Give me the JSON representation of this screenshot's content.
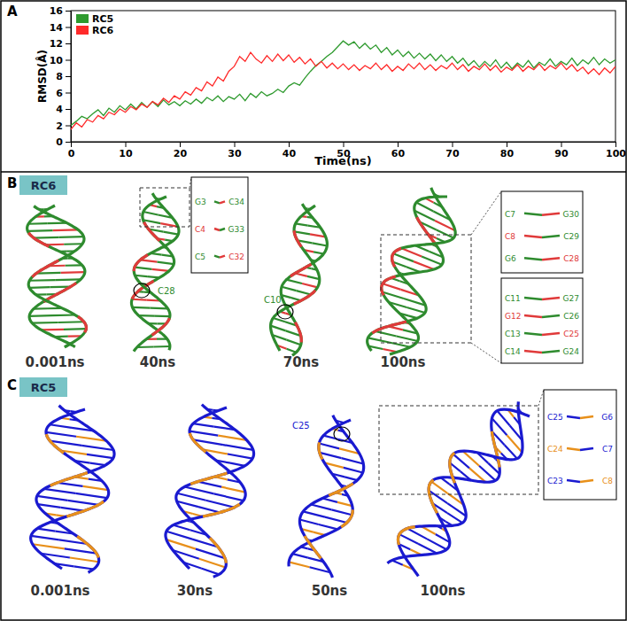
{
  "chart_data": {
    "type": "line",
    "x_label": "Time(ns)",
    "y_label": "RMSD(Å)",
    "x": [
      0,
      1,
      2,
      3,
      4,
      5,
      6,
      7,
      8,
      9,
      10,
      11,
      12,
      13,
      14,
      15,
      16,
      17,
      18,
      19,
      20,
      21,
      22,
      23,
      24,
      25,
      26,
      27,
      28,
      29,
      30,
      31,
      32,
      33,
      34,
      35,
      36,
      37,
      38,
      39,
      40,
      41,
      42,
      43,
      44,
      45,
      46,
      47,
      48,
      49,
      50,
      51,
      52,
      53,
      54,
      55,
      56,
      57,
      58,
      59,
      60,
      61,
      62,
      63,
      64,
      65,
      66,
      67,
      68,
      69,
      70,
      71,
      72,
      73,
      74,
      75,
      76,
      77,
      78,
      79,
      80,
      81,
      82,
      83,
      84,
      85,
      86,
      87,
      88,
      89,
      90,
      91,
      92,
      93,
      94,
      95,
      96,
      97,
      98,
      99,
      100
    ],
    "series": [
      {
        "name": "RC5",
        "color": "#2e9a2e",
        "values": [
          2.0,
          2.5,
          3.1,
          2.8,
          3.4,
          3.9,
          3.2,
          4.1,
          3.6,
          4.4,
          3.9,
          4.6,
          4.0,
          4.8,
          4.2,
          4.9,
          4.3,
          5.1,
          4.5,
          4.9,
          4.4,
          5.0,
          4.6,
          5.2,
          4.7,
          5.4,
          5.0,
          5.6,
          4.9,
          5.5,
          5.2,
          5.8,
          5.0,
          5.9,
          5.4,
          6.1,
          5.6,
          5.9,
          6.4,
          6.0,
          6.8,
          7.2,
          6.9,
          7.8,
          8.6,
          9.3,
          9.8,
          10.4,
          10.9,
          11.6,
          12.3,
          11.8,
          12.2,
          11.4,
          12.0,
          11.3,
          11.8,
          10.9,
          11.5,
          10.6,
          11.2,
          10.4,
          11.0,
          10.2,
          10.8,
          10.1,
          10.7,
          9.9,
          10.6,
          9.8,
          10.4,
          9.6,
          10.2,
          9.3,
          9.9,
          9.1,
          9.8,
          9.2,
          10.0,
          9.0,
          9.7,
          8.9,
          9.6,
          9.1,
          9.9,
          9.0,
          9.7,
          9.3,
          10.1,
          9.2,
          9.8,
          9.4,
          10.2,
          9.3,
          10.0,
          9.5,
          10.3,
          9.4,
          10.1,
          9.6,
          10.0
        ]
      },
      {
        "name": "RC6",
        "color": "#ff2a2a",
        "values": [
          1.5,
          2.3,
          1.8,
          2.7,
          2.4,
          3.2,
          2.8,
          3.6,
          3.3,
          4.0,
          3.6,
          4.3,
          3.9,
          4.6,
          4.2,
          4.9,
          4.5,
          5.3,
          4.8,
          5.6,
          5.2,
          6.1,
          5.7,
          6.6,
          6.2,
          7.3,
          6.8,
          7.9,
          7.4,
          8.6,
          9.2,
          10.4,
          9.8,
          10.9,
          10.1,
          9.6,
          10.5,
          9.8,
          10.7,
          9.9,
          10.6,
          9.7,
          10.3,
          9.5,
          10.1,
          9.2,
          9.8,
          9.0,
          9.6,
          8.9,
          9.5,
          8.8,
          9.4,
          8.7,
          9.3,
          8.9,
          9.6,
          8.8,
          9.4,
          8.6,
          9.2,
          8.7,
          9.5,
          8.9,
          9.6,
          8.8,
          9.4,
          8.7,
          9.3,
          8.9,
          9.6,
          8.8,
          9.4,
          8.6,
          9.2,
          8.8,
          9.5,
          8.7,
          9.3,
          8.5,
          9.1,
          8.7,
          9.4,
          8.6,
          9.2,
          8.8,
          9.5,
          8.7,
          9.3,
          8.9,
          9.6,
          8.8,
          9.4,
          8.6,
          9.1,
          8.3,
          8.9,
          8.2,
          9.0,
          8.4,
          9.2
        ]
      }
    ],
    "xlim": [
      0,
      100
    ],
    "xticks": [
      0,
      10,
      20,
      30,
      40,
      50,
      60,
      70,
      80,
      90,
      100
    ],
    "ylim": [
      0,
      16
    ],
    "yticks": [
      0,
      2,
      4,
      6,
      8,
      10,
      12,
      14,
      16
    ],
    "legend": "upper left"
  },
  "panel_labels": [
    "A",
    "B",
    "C"
  ],
  "panels": [
    {
      "tag": "RC6",
      "snapshots": [
        {
          "time": "0.001ns",
          "markers": [],
          "insets": []
        },
        {
          "time": "40ns",
          "markers": [
            "C28"
          ],
          "insets": [
            [
              "G3",
              "C34",
              "C4",
              "G33",
              "C5",
              "C32"
            ]
          ]
        },
        {
          "time": "70ns",
          "markers": [
            "C10"
          ],
          "insets": []
        },
        {
          "time": "100ns",
          "markers": [],
          "insets": [
            [
              "C7",
              "G30",
              "C8",
              "C29",
              "G6",
              "C28"
            ],
            [
              "C11",
              "G27",
              "G12",
              "C26",
              "C13",
              "C25",
              "C14",
              "G24"
            ]
          ]
        }
      ]
    },
    {
      "tag": "RC5",
      "snapshots": [
        {
          "time": "0.001ns",
          "markers": [],
          "insets": []
        },
        {
          "time": "30ns",
          "markers": [],
          "insets": []
        },
        {
          "time": "50ns",
          "markers": [
            "C25"
          ],
          "insets": []
        },
        {
          "time": "100ns",
          "markers": [],
          "insets": [
            [
              "C25",
              "G6",
              "C24",
              "C7",
              "C23",
              "C8"
            ]
          ]
        }
      ]
    }
  ]
}
